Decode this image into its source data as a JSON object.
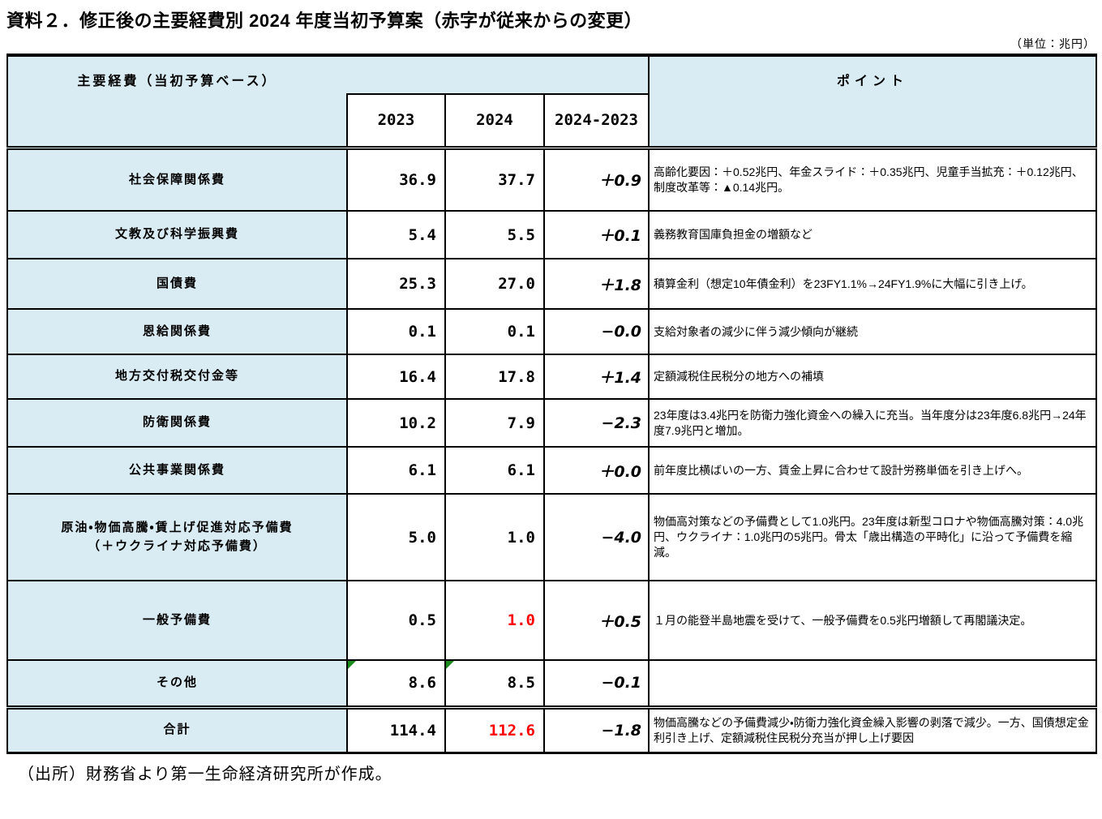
{
  "title": "資料２．修正後の主要経費別 2024 年度当初予算案（赤字が従来からの変更）",
  "unit_note": "（単位：兆円）",
  "source": "（出所）財務省より第一生命経済研究所が作成。",
  "colors": {
    "header_fill": "#d9ecf3",
    "changed_value_red": "#ff0000",
    "flag_triangle_green": "#1b891b",
    "border": "#000000"
  },
  "table": {
    "header": {
      "label": "主要経費（当初予算ベース）",
      "col_2023": "2023",
      "col_2024": "2024",
      "col_diff": "2024-2023",
      "points": "ポイント"
    },
    "rows": [
      {
        "label": "社会保障関係費",
        "v2023": "36.9",
        "v2024": "37.7",
        "diff": "＋0.9",
        "point": "高齢化要因：＋0.52兆円、年金スライド：＋0.35兆円、児童手当拡充：＋0.12兆円、制度改革等：▲0.14兆円。"
      },
      {
        "label": "文教及び科学振興費",
        "v2023": "5.4",
        "v2024": "5.5",
        "diff": "＋0.1",
        "point": "義務教育国庫負担金の増額など"
      },
      {
        "label": "国債費",
        "v2023": "25.3",
        "v2024": "27.0",
        "diff": "＋1.8",
        "point": "積算金利（想定10年債金利）を23FY1.1%→24FY1.9%に大幅に引き上げ。"
      },
      {
        "label": "恩給関係費",
        "v2023": "0.1",
        "v2024": "0.1",
        "diff": "−0.0",
        "point": "支給対象者の減少に伴う減少傾向が継続"
      },
      {
        "label": "地方交付税交付金等",
        "v2023": "16.4",
        "v2024": "17.8",
        "diff": "＋1.4",
        "point": "定額減税住民税分の地方への補填"
      },
      {
        "label": "防衛関係費",
        "v2023": "10.2",
        "v2024": "7.9",
        "diff": "−2.3",
        "point": "23年度は3.4兆円を防衛力強化資金への繰入に充当。当年度分は23年度6.8兆円→24年度7.9兆円と増加。"
      },
      {
        "label": "公共事業関係費",
        "v2023": "6.1",
        "v2024": "6.1",
        "diff": "＋0.0",
        "point": "前年度比横ばいの一方、賃金上昇に合わせて設計労務単価を引き上げへ。"
      },
      {
        "label": "原油・物価高騰・賃上げ促進対応予備費\n（＋ウクライナ対応予備費）",
        "v2023": "5.0",
        "v2024": "1.0",
        "diff": "−4.0",
        "point": "物価高対策などの予備費として1.0兆円。23年度は新型コロナや物価高騰対策：4.0兆円、ウクライナ：1.0兆円の5兆円。骨太「歳出構造の平時化」に沿って予備費を縮減。"
      },
      {
        "label": "一般予備費",
        "v2023": "0.5",
        "v2024": "1.0",
        "diff": "＋0.5",
        "point": "１月の能登半島地震を受けて、一般予備費を0.5兆円増額して再閣議決定。"
      },
      {
        "label": "その他",
        "v2023": "8.6",
        "v2024": "8.5",
        "diff": "−0.1",
        "point": ""
      },
      {
        "label": "合計",
        "v2023": "114.4",
        "v2024": "112.6",
        "diff": "−1.8",
        "point": "物価高騰などの予備費減少・防衛力強化資金繰入影響の剥落で減少。一方、国債想定金利引き上げ、定額減税住民税分充当が押し上げ要因"
      }
    ]
  }
}
